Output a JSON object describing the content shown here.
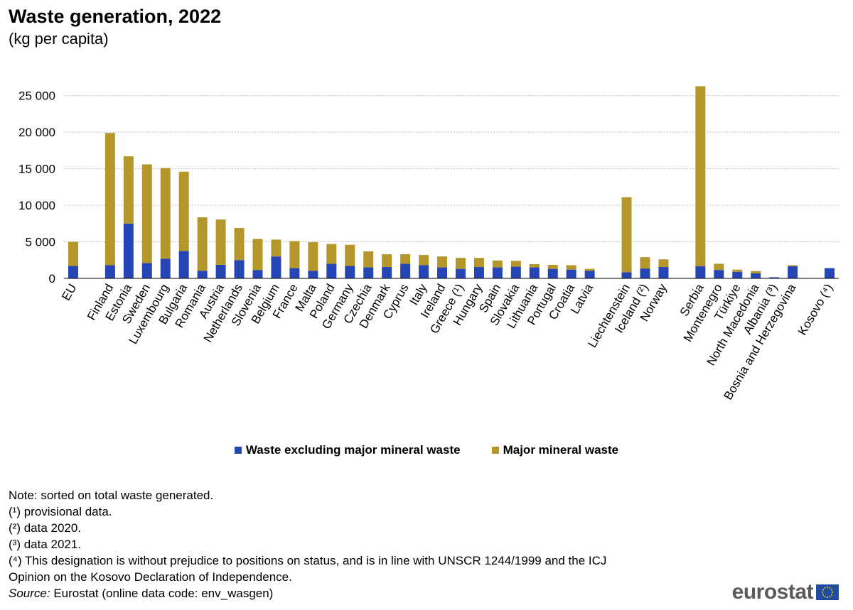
{
  "title": "Waste generation, 2022",
  "subtitle": "(kg per capita)",
  "legend": {
    "items": [
      {
        "label": "Waste excluding major mineral waste",
        "color": "#2546b4"
      },
      {
        "label": "Major mineral waste",
        "color": "#b4962a"
      }
    ]
  },
  "notes": {
    "sort": "Note: sorted on total waste generated.",
    "f1": "(¹) provisional data.",
    "f2": "(²) data 2020.",
    "f3": "(³) data 2021.",
    "f4a": "(⁴) This designation is without prejudice to positions on status, and is in line with UNSCR 1244/1999 and the ICJ",
    "f4b": "Opinion on the Kosovo Declaration of Independence.",
    "source_label": "Source:",
    "source_text": " Eurostat (online data code: env_wasgen)"
  },
  "logo": {
    "text": "eurostat",
    "icon": "eu-flag-icon"
  },
  "chart_data": {
    "type": "bar",
    "stacked": true,
    "title": "Waste generation, 2022",
    "subtitle": "(kg per capita)",
    "ylim": [
      0,
      27500
    ],
    "yticks": [
      0,
      5000,
      10000,
      15000,
      20000,
      25000
    ],
    "ytick_labels": [
      "0",
      "5 000",
      "10 000",
      "15 000",
      "20 000",
      "25 000"
    ],
    "grid": true,
    "legend_position": "bottom",
    "categories": [
      "EU",
      "",
      "Finland",
      "Estonia",
      "Sweden",
      "Luxembourg",
      "Bulgaria",
      "Romania",
      "Austria",
      "Netherlands",
      "Slovenia",
      "Belgium",
      "France",
      "Malta",
      "Poland",
      "Germany",
      "Czechia",
      "Denmark",
      "Cyprus",
      "Italy",
      "Ireland",
      "Greece (¹)",
      "Hungary",
      "Spain",
      "Slovakia",
      "Lithuania",
      "Portugal",
      "Croatia",
      "Latvia",
      "",
      "Liechtenstein",
      "Iceland (²)",
      "Norway",
      "",
      "Serbia",
      "Montenegro",
      "Türkiye",
      "North Macedonia",
      "Albania (³)",
      "Bosnia and Herzegovina",
      "",
      "Kosovo (⁴)"
    ],
    "series": [
      {
        "name": "Waste excluding major mineral waste",
        "color": "#2546b4",
        "values": [
          1700,
          null,
          1800,
          7500,
          2100,
          2700,
          3750,
          1050,
          1850,
          2500,
          1150,
          3000,
          1400,
          1050,
          2000,
          1700,
          1500,
          1550,
          2000,
          1800,
          1500,
          1300,
          1550,
          1500,
          1600,
          1500,
          1300,
          1200,
          1050,
          null,
          850,
          1350,
          1550,
          null,
          1650,
          1150,
          900,
          700,
          150,
          1650,
          null,
          1400
        ]
      },
      {
        "name": "Major mineral waste",
        "color": "#b4962a",
        "values": [
          3300,
          null,
          18100,
          9200,
          13500,
          12400,
          10850,
          7300,
          6200,
          4400,
          4250,
          2300,
          3700,
          3900,
          2700,
          2900,
          2200,
          1750,
          1300,
          1400,
          1500,
          1500,
          1250,
          950,
          800,
          450,
          550,
          600,
          250,
          null,
          10250,
          1550,
          1050,
          null,
          24650,
          850,
          300,
          300,
          0,
          150,
          null,
          0
        ]
      }
    ]
  }
}
